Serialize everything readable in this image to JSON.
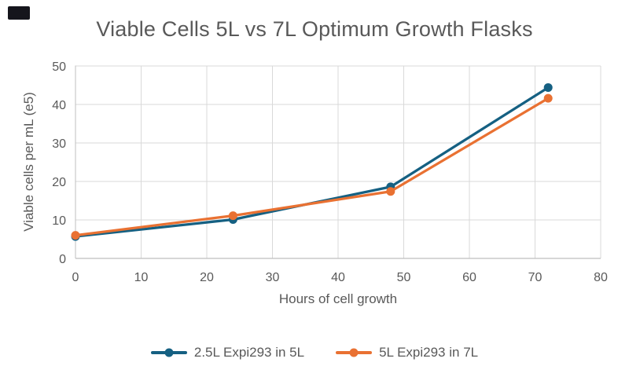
{
  "corner_box": {
    "color": "#15151c"
  },
  "chart_data": {
    "type": "line",
    "title": "Viable Cells 5L vs 7L Optimum Growth Flasks",
    "xlabel": "Hours of cell growth",
    "ylabel": "Viable cells per mL (e5)",
    "x": [
      0,
      24,
      48,
      72
    ],
    "series": [
      {
        "name": "2.5L Expi293 in 5L",
        "color": "#156082",
        "values": [
          5.7,
          10.1,
          18.6,
          44.4
        ]
      },
      {
        "name": "5L Expi293 in 7L",
        "color": "#E97132",
        "values": [
          6.0,
          11.1,
          17.4,
          41.6
        ]
      }
    ],
    "xlim": [
      0,
      80
    ],
    "ylim": [
      0,
      50
    ],
    "x_ticks": [
      0,
      10,
      20,
      30,
      40,
      50,
      60,
      70,
      80
    ],
    "y_ticks": [
      0,
      10,
      20,
      30,
      40,
      50
    ],
    "grid": true,
    "legend_position": "bottom",
    "marker": "circle",
    "colors": {
      "text": "#595959",
      "gridline": "#D9D9D9",
      "axis_line": "#BFBFBF"
    }
  }
}
